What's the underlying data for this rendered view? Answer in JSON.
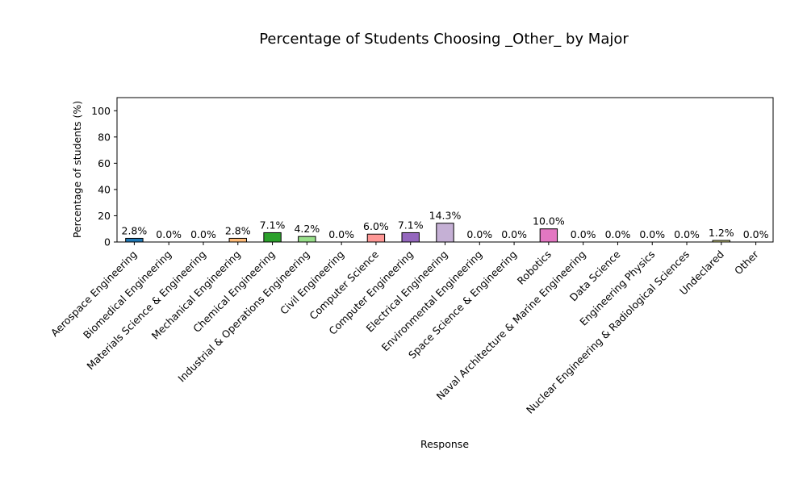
{
  "chart_data": {
    "type": "bar",
    "title": "Percentage of Students Choosing _Other_ by Major",
    "xlabel": "Response",
    "ylabel": "Percentage of students (%)",
    "ylim": [
      0,
      110
    ],
    "yticks": [
      0,
      20,
      40,
      60,
      80,
      100
    ],
    "grid": false,
    "legend": "none",
    "categories": [
      "Aerospace Engineering",
      "Biomedical Engineering",
      "Materials Science & Engineering",
      "Mechanical Engineering",
      "Chemical Engineering",
      "Industrial & Operations Engineering",
      "Civil Engineering",
      "Computer Science",
      "Computer Engineering",
      "Electrical Engineering",
      "Environmental Engineering",
      "Space Science & Engineering",
      "Robotics",
      "Naval Architecture & Marine Engineering",
      "Data Science",
      "Engineering Physics",
      "Nuclear Engineering & Radiological Sciences",
      "Undeclared",
      "Other"
    ],
    "values": [
      2.8,
      0.0,
      0.0,
      2.8,
      7.1,
      4.2,
      0.0,
      6.0,
      7.1,
      14.3,
      0.0,
      0.0,
      10.0,
      0.0,
      0.0,
      0.0,
      0.0,
      1.2,
      0.0
    ],
    "value_labels": [
      "2.8%",
      "0.0%",
      "0.0%",
      "2.8%",
      "7.1%",
      "4.2%",
      "0.0%",
      "6.0%",
      "7.1%",
      "14.3%",
      "0.0%",
      "0.0%",
      "10.0%",
      "0.0%",
      "0.0%",
      "0.0%",
      "0.0%",
      "1.2%",
      "0.0%"
    ],
    "colors": [
      "#1f77b4",
      "#aec7e8",
      "#ff7f0e",
      "#ffbb78",
      "#2ca02c",
      "#98df8a",
      "#d62728",
      "#ff9896",
      "#9467bd",
      "#c5b0d5",
      "#8c564b",
      "#c49c94",
      "#e377c2",
      "#f7b6d2",
      "#7f7f7f",
      "#c7c7c7",
      "#bcbd22",
      "#dbdb8d",
      "#17becf"
    ]
  }
}
